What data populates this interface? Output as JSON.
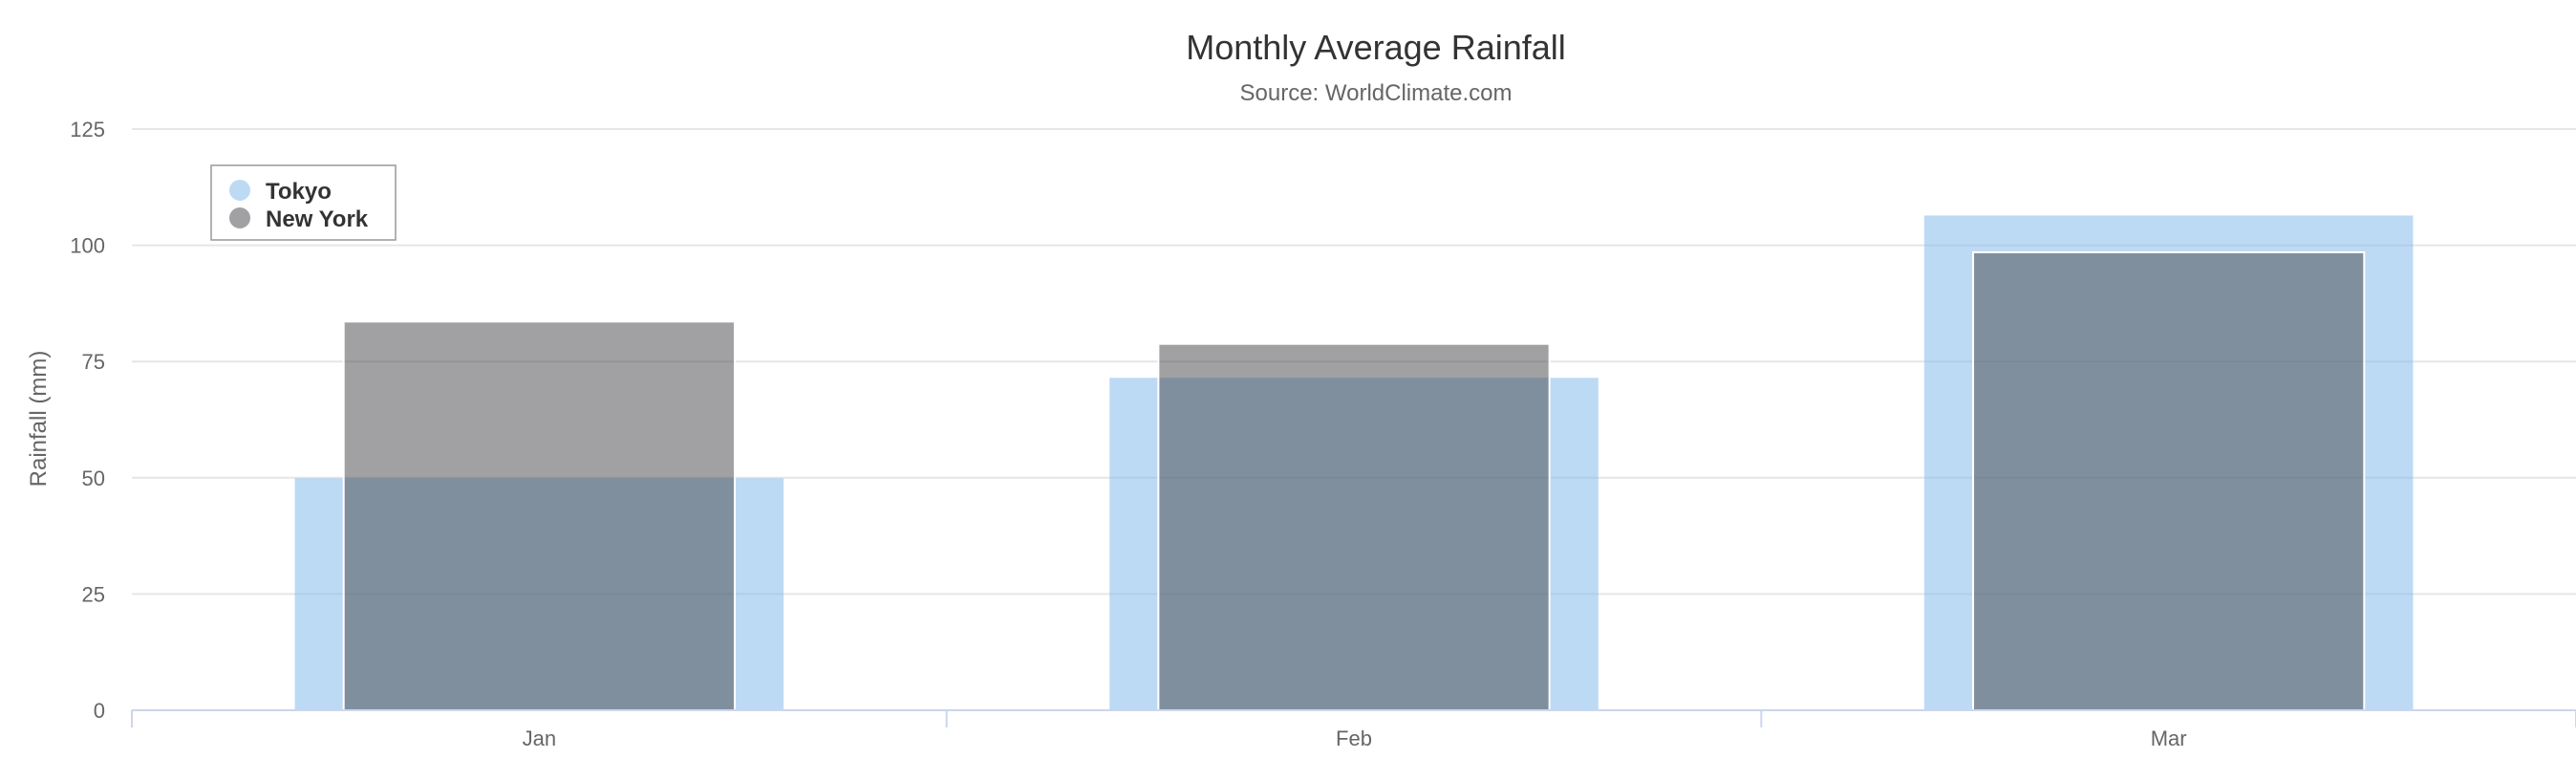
{
  "chart_data": {
    "type": "bar",
    "title": "Monthly Average Rainfall",
    "subtitle": "Source: WorldClimate.com",
    "xlabel": "",
    "ylabel": "Rainfall (mm)",
    "categories": [
      "Jan",
      "Feb",
      "Mar"
    ],
    "ylim": [
      0,
      125
    ],
    "yticks": [
      0,
      25,
      50,
      75,
      100,
      125
    ],
    "grid": true,
    "legend_position": "top-left",
    "series": [
      {
        "name": "Tokyo",
        "values": [
          49.9,
          71.5,
          106.4
        ],
        "color": "#7cb5ec",
        "opacity": 0.5
      },
      {
        "name": "New York",
        "values": [
          83.6,
          78.8,
          98.5
        ],
        "color": "#434348",
        "opacity": 0.5
      }
    ]
  }
}
